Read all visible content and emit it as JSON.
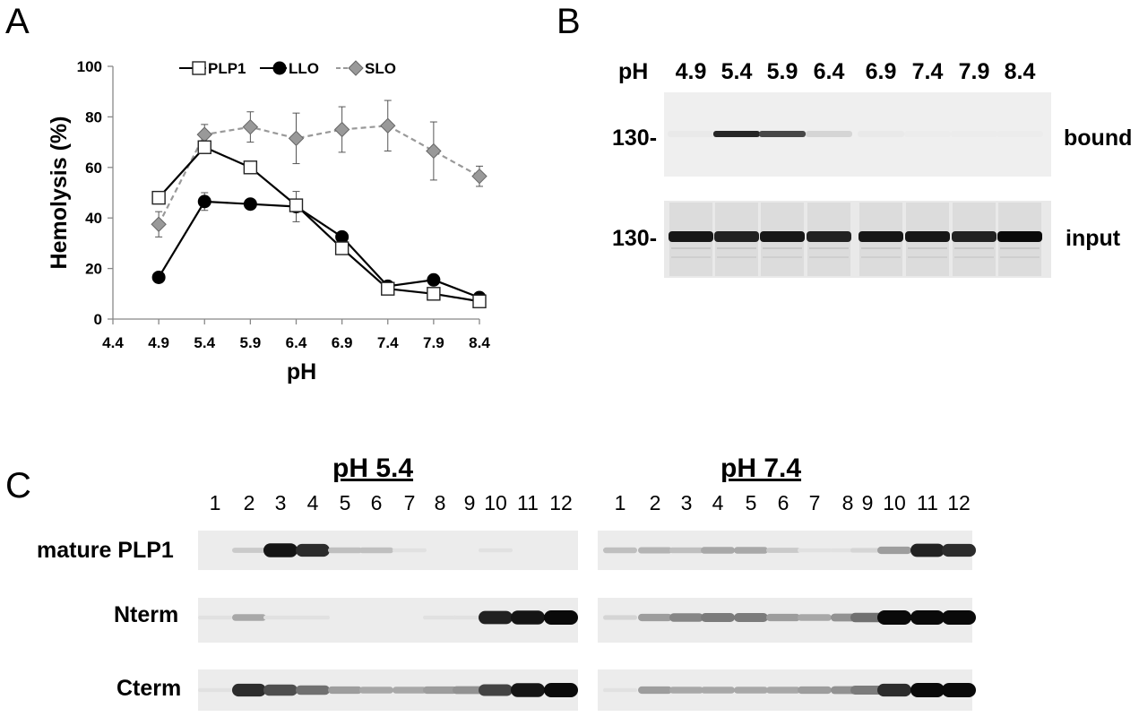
{
  "panels": {
    "A": "A",
    "B": "B",
    "C": "C"
  },
  "chart_data": {
    "type": "line",
    "xlabel": "pH",
    "ylabel": "Hemolysis (%)",
    "xlim": [
      4.4,
      8.4
    ],
    "ylim": [
      0,
      100
    ],
    "x_ticks": [
      "4.4",
      "4.9",
      "5.4",
      "5.9",
      "6.4",
      "6.9",
      "7.4",
      "7.9",
      "8.4"
    ],
    "y_ticks": [
      "0",
      "20",
      "40",
      "60",
      "80",
      "100"
    ],
    "legend_position": "top",
    "series": [
      {
        "name": "PLP1",
        "marker": "open-square",
        "color": "#000000",
        "dash": "solid",
        "x": [
          4.9,
          5.4,
          5.9,
          6.4,
          6.9,
          7.4,
          7.9,
          8.4
        ],
        "y": [
          48,
          68,
          60,
          45,
          28,
          12,
          10,
          7
        ],
        "err": [
          1,
          2,
          2,
          2,
          1,
          1,
          1,
          1
        ]
      },
      {
        "name": "LLO",
        "marker": "filled-circle",
        "color": "#000000",
        "dash": "solid",
        "x": [
          4.9,
          5.4,
          5.9,
          6.4,
          6.9,
          7.4,
          7.9,
          8.4
        ],
        "y": [
          16.5,
          46.5,
          45.5,
          44.5,
          32.5,
          13,
          15.5,
          8.5
        ],
        "err": [
          0.5,
          3.5,
          1,
          6,
          1,
          1,
          1,
          1
        ]
      },
      {
        "name": "SLO",
        "marker": "gray-diamond",
        "color": "#999999",
        "dash": "dashed",
        "x": [
          4.9,
          5.4,
          5.9,
          6.4,
          6.9,
          7.4,
          7.9,
          8.4
        ],
        "y": [
          37.5,
          73,
          76,
          71.5,
          75,
          76.5,
          66.5,
          56.5
        ],
        "err": [
          5,
          4,
          6,
          10,
          9,
          10,
          11.5,
          4
        ]
      }
    ]
  },
  "panelB": {
    "ph_label": "pH",
    "lanes": [
      "4.9",
      "5.4",
      "5.9",
      "6.4",
      "6.9",
      "7.4",
      "7.9",
      "8.4"
    ],
    "mw_bound": "130-",
    "mw_input": "130-",
    "label_bound": "bound",
    "label_input": "input",
    "bound_intensity": [
      0.03,
      0.9,
      0.75,
      0.12,
      0.03,
      0.02,
      0.02,
      0.02
    ],
    "input_intensity": [
      0.95,
      0.9,
      0.95,
      0.9,
      0.95,
      0.95,
      0.9,
      1.0
    ]
  },
  "panelC": {
    "left_title": "pH 5.4",
    "right_title": "pH 7.4",
    "fractions": [
      "1",
      "2",
      "3",
      "4",
      "5",
      "6",
      "7",
      "8",
      "9",
      "10",
      "11",
      "12"
    ],
    "rows": [
      "mature PLP1",
      "Nterm",
      "Cterm"
    ],
    "left": {
      "mature": [
        0.0,
        0.15,
        0.95,
        0.85,
        0.2,
        0.2,
        0.05,
        0.0,
        0.0,
        0.05,
        0.0,
        0.0
      ],
      "nterm": [
        0.05,
        0.3,
        0.05,
        0.05,
        0.0,
        0.0,
        0.0,
        0.05,
        0.05,
        0.9,
        0.95,
        1.0
      ],
      "cterm": [
        0.05,
        0.85,
        0.7,
        0.55,
        0.35,
        0.3,
        0.3,
        0.35,
        0.4,
        0.75,
        0.95,
        1.0
      ]
    },
    "right": {
      "mature": [
        0.2,
        0.25,
        0.2,
        0.3,
        0.3,
        0.15,
        0.05,
        0.05,
        0.1,
        0.35,
        0.9,
        0.85
      ],
      "nterm": [
        0.1,
        0.35,
        0.45,
        0.5,
        0.5,
        0.35,
        0.3,
        0.4,
        0.55,
        1.0,
        1.0,
        1.0
      ],
      "cterm": [
        0.05,
        0.35,
        0.3,
        0.3,
        0.3,
        0.3,
        0.35,
        0.4,
        0.5,
        0.85,
        1.0,
        1.0
      ]
    }
  }
}
